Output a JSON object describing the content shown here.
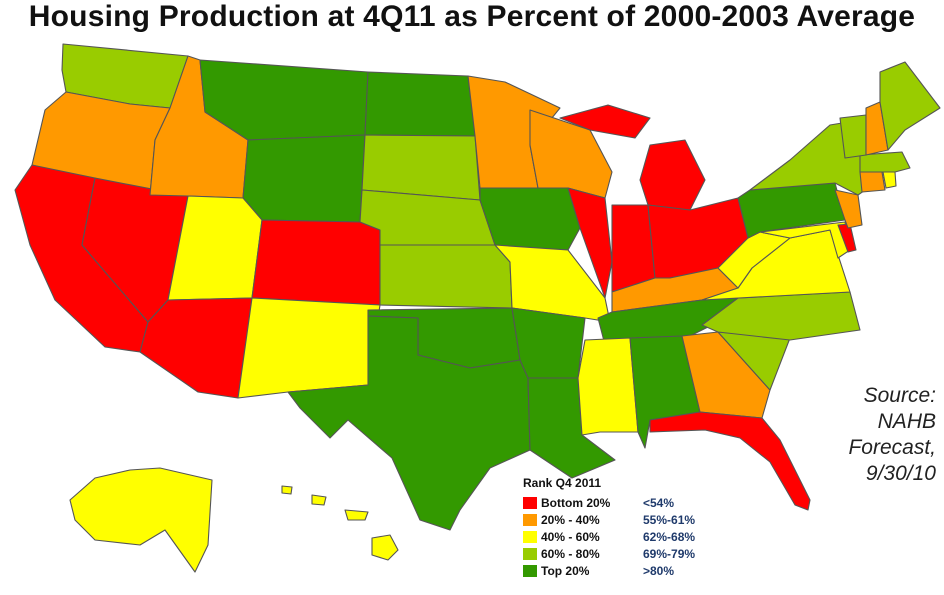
{
  "title": "Housing Production at 4Q11 as Percent of 2000-2003 Average",
  "source_lines": [
    "Source:",
    "NAHB",
    "Forecast,",
    "9/30/10"
  ],
  "legend": {
    "title": "Rank Q4 2011",
    "items": [
      {
        "label": "Bottom 20%",
        "range": "<54%",
        "color": "#ff0000"
      },
      {
        "label": "20% - 40%",
        "range": "55%-61%",
        "color": "#ff9900"
      },
      {
        "label": "40% - 60%",
        "range": "62%-68%",
        "color": "#ffff00"
      },
      {
        "label": "60% - 80%",
        "range": "69%-79%",
        "color": "#99cc00"
      },
      {
        "label": "Top 20%",
        "range": ">80%",
        "color": "#339900"
      }
    ]
  },
  "state_ranks": {
    "WA": "60% - 80%",
    "OR": "20% - 40%",
    "CA": "Bottom 20%",
    "NV": "Bottom 20%",
    "ID": "20% - 40%",
    "MT": "Top 20%",
    "WY": "Top 20%",
    "UT": "40% - 60%",
    "CO": "Bottom 20%",
    "AZ": "Bottom 20%",
    "NM": "40% - 60%",
    "ND": "Top 20%",
    "SD": "60% - 80%",
    "NE": "60% - 80%",
    "KS": "60% - 80%",
    "OK": "Top 20%",
    "TX": "Top 20%",
    "MN": "20% - 40%",
    "IA": "Top 20%",
    "MO": "40% - 60%",
    "AR": "Top 20%",
    "LA": "Top 20%",
    "WI": "20% - 40%",
    "IL": "Bottom 20%",
    "MI": "Bottom 20%",
    "IN": "Bottom 20%",
    "OH": "Bottom 20%",
    "KY": "20% - 40%",
    "TN": "Top 20%",
    "MS": "40% - 60%",
    "AL": "Top 20%",
    "GA": "20% - 40%",
    "FL": "Bottom 20%",
    "SC": "60% - 80%",
    "NC": "60% - 80%",
    "VA": "40% - 60%",
    "WV": "40% - 60%",
    "PA": "Top 20%",
    "NY": "60% - 80%",
    "NJ": "20% - 40%",
    "DE": "Bottom 20%",
    "MD": "40% - 60%",
    "CT": "20% - 40%",
    "RI": "40% - 60%",
    "MA": "60% - 80%",
    "VT": "60% - 80%",
    "NH": "20% - 40%",
    "ME": "60% - 80%",
    "AK": "40% - 60%",
    "HI": "40% - 60%"
  }
}
